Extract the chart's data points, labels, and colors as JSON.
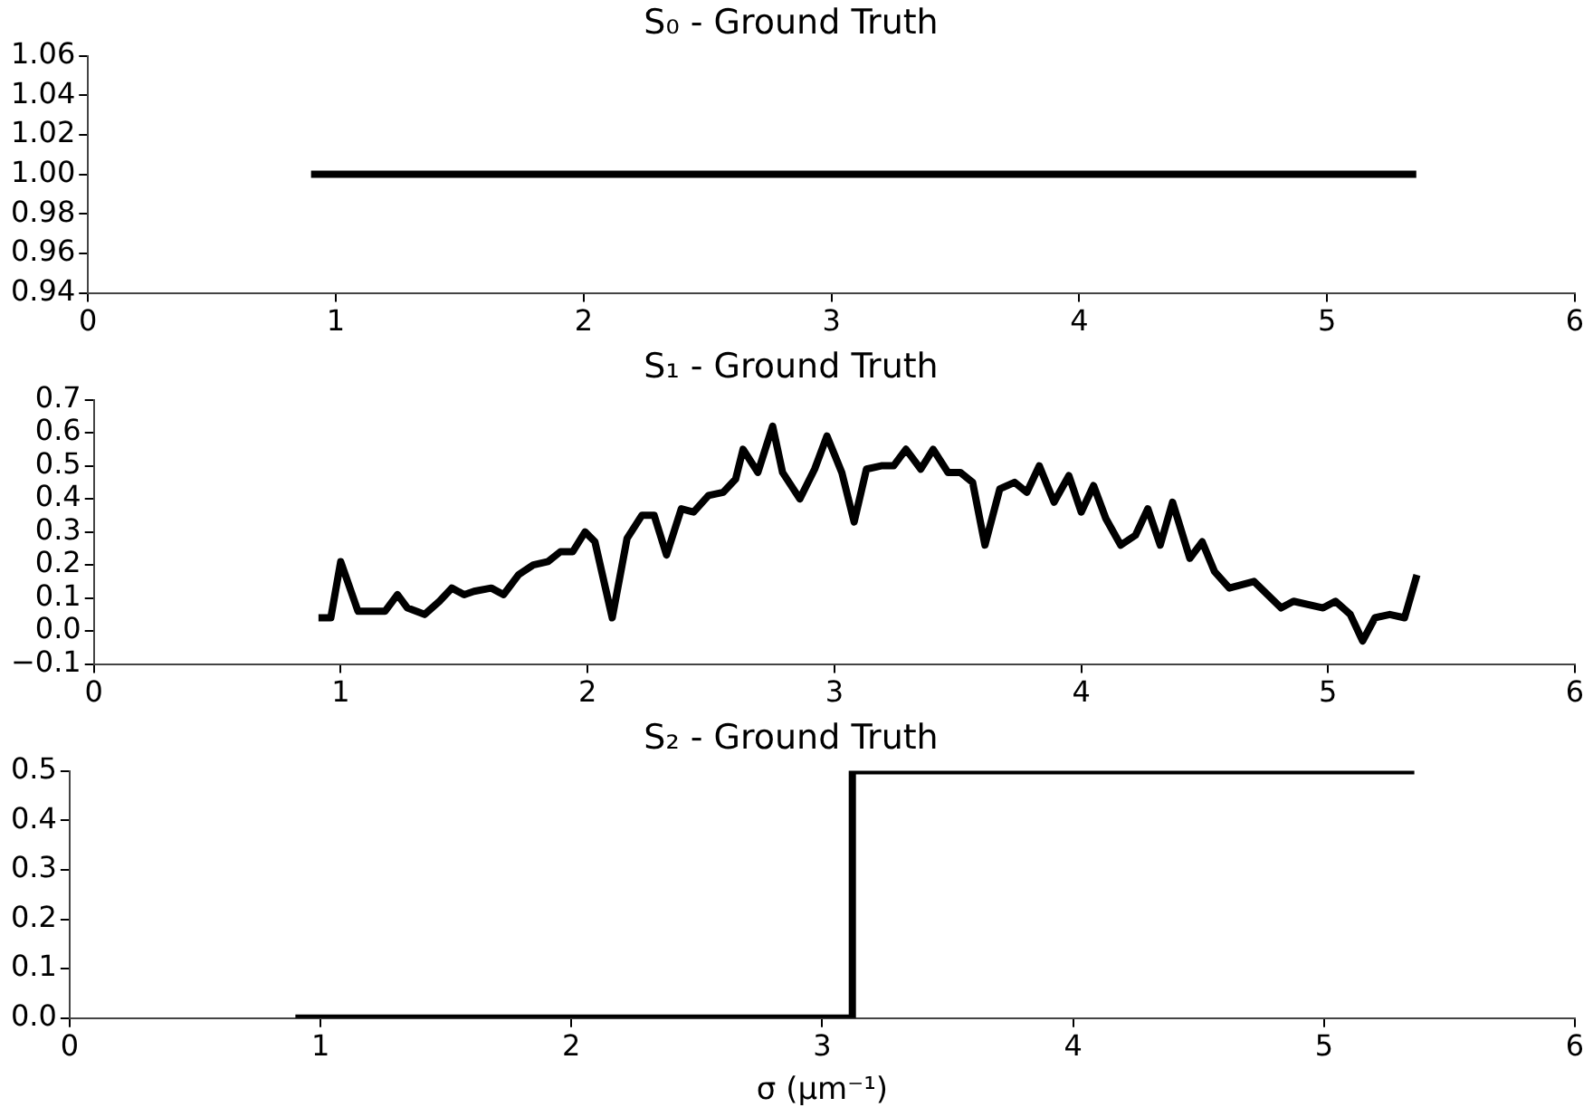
{
  "chart_data": [
    {
      "type": "line",
      "title": "S₀ - Ground Truth",
      "x": [
        0.9,
        5.36
      ],
      "series": [
        {
          "color": "#000000",
          "values": [
            1.0,
            1.0
          ]
        }
      ],
      "xlim": [
        0,
        6
      ],
      "xticks": [
        0,
        1,
        2,
        3,
        4,
        5,
        6
      ],
      "ylim": [
        0.94,
        1.06
      ],
      "yticks": [
        {
          "value": 0.94,
          "label": "0.94"
        },
        {
          "value": 0.96,
          "label": "0.96"
        },
        {
          "value": 0.98,
          "label": "0.98"
        },
        {
          "value": 1.0,
          "label": "1.00"
        },
        {
          "value": 1.02,
          "label": "1.02"
        },
        {
          "value": 1.04,
          "label": "1.04"
        },
        {
          "value": 1.06,
          "label": "1.06"
        }
      ],
      "grid": false,
      "legend": false,
      "marker": "none",
      "line_style": "solid"
    },
    {
      "type": "line",
      "title": "S₁ - Ground Truth",
      "x": [
        0.91,
        0.96,
        1.0,
        1.07,
        1.13,
        1.18,
        1.23,
        1.27,
        1.34,
        1.4,
        1.45,
        1.5,
        1.54,
        1.61,
        1.66,
        1.72,
        1.78,
        1.84,
        1.89,
        1.94,
        1.99,
        2.03,
        2.1,
        2.16,
        2.22,
        2.27,
        2.32,
        2.38,
        2.43,
        2.49,
        2.55,
        2.6,
        2.63,
        2.69,
        2.75,
        2.79,
        2.86,
        2.92,
        2.97,
        3.03,
        3.08,
        3.13,
        3.19,
        3.24,
        3.29,
        3.35,
        3.4,
        3.46,
        3.51,
        3.56,
        3.61,
        3.67,
        3.73,
        3.78,
        3.83,
        3.89,
        3.95,
        4.0,
        4.05,
        4.1,
        4.16,
        4.22,
        4.27,
        4.32,
        4.37,
        4.44,
        4.49,
        4.54,
        4.6,
        4.7,
        4.81,
        4.86,
        4.98,
        5.03,
        5.09,
        5.14,
        5.19,
        5.25,
        5.31,
        5.36
      ],
      "series": [
        {
          "color": "#000000",
          "values": [
            0.04,
            0.04,
            0.21,
            0.06,
            0.06,
            0.06,
            0.11,
            0.07,
            0.05,
            0.09,
            0.13,
            0.11,
            0.12,
            0.13,
            0.11,
            0.17,
            0.2,
            0.21,
            0.24,
            0.24,
            0.3,
            0.27,
            0.04,
            0.28,
            0.35,
            0.35,
            0.23,
            0.37,
            0.36,
            0.41,
            0.42,
            0.46,
            0.55,
            0.48,
            0.62,
            0.48,
            0.4,
            0.49,
            0.59,
            0.48,
            0.33,
            0.49,
            0.5,
            0.5,
            0.55,
            0.49,
            0.55,
            0.48,
            0.48,
            0.45,
            0.26,
            0.43,
            0.45,
            0.42,
            0.5,
            0.39,
            0.47,
            0.36,
            0.44,
            0.34,
            0.26,
            0.29,
            0.37,
            0.26,
            0.39,
            0.22,
            0.27,
            0.18,
            0.13,
            0.15,
            0.07,
            0.09,
            0.07,
            0.09,
            0.05,
            -0.03,
            0.04,
            0.05,
            0.04,
            0.17
          ]
        }
      ],
      "xlim": [
        0,
        6
      ],
      "xticks": [
        0,
        1,
        2,
        3,
        4,
        5,
        6
      ],
      "ylim": [
        -0.1,
        0.7
      ],
      "yticks": [
        {
          "value": -0.1,
          "label": "−0.1"
        },
        {
          "value": 0,
          "label": "0.0"
        },
        0.1,
        0.2,
        0.3,
        0.4,
        0.5,
        0.6,
        0.7
      ],
      "grid": false,
      "legend": false,
      "marker": "none",
      "line_style": "solid"
    },
    {
      "type": "line",
      "title": "S₂ - Ground Truth",
      "xlabel": "σ (μm⁻¹)",
      "x": [
        0.9,
        3.12,
        3.12,
        5.36
      ],
      "series": [
        {
          "color": "#000000",
          "values": [
            0,
            0,
            0.5,
            0.5
          ]
        }
      ],
      "xlim": [
        0,
        6
      ],
      "xticks": [
        0,
        1,
        2,
        3,
        4,
        5,
        6
      ],
      "ylim": [
        0,
        0.5
      ],
      "yticks": [
        {
          "value": 0,
          "label": "0.0"
        },
        0.1,
        0.2,
        0.3,
        0.4,
        0.5
      ],
      "grid": false,
      "legend": false,
      "marker": "none",
      "line_style": "solid"
    }
  ]
}
